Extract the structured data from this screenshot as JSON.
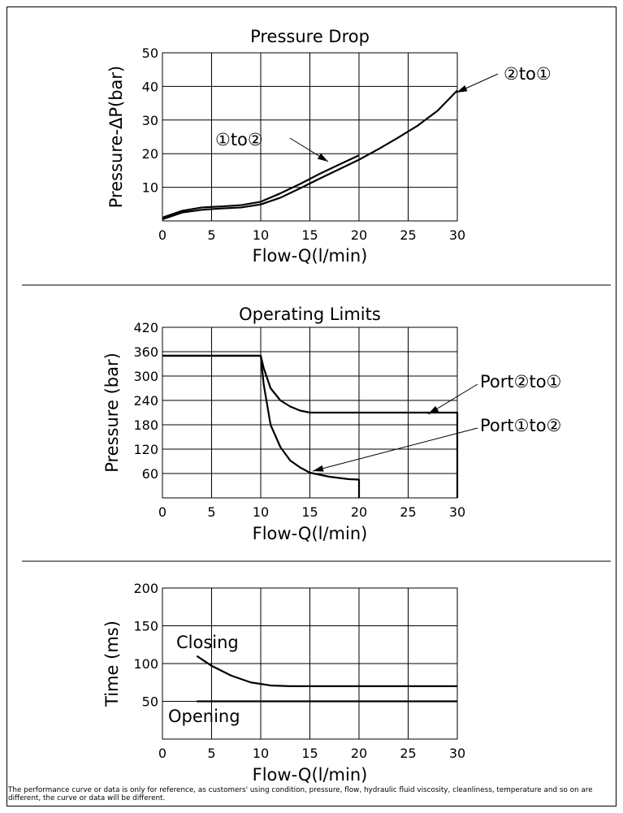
{
  "chart_data": [
    {
      "type": "line",
      "title": "Pressure Drop",
      "xlabel": "Flow-Q(l/min)",
      "ylabel": "Pressure-ΔP(bar)",
      "xlim": [
        0,
        30
      ],
      "ylim": [
        0,
        50
      ],
      "x_ticks": [
        "0",
        "5",
        "10",
        "15",
        "20",
        "25",
        "30"
      ],
      "y_ticks": [
        "10",
        "20",
        "30",
        "40",
        "50"
      ],
      "grid": true,
      "series": [
        {
          "name": "①to②",
          "x": [
            0,
            2,
            4,
            6,
            8,
            10,
            12,
            14,
            16,
            18,
            20
          ],
          "y": [
            1,
            3,
            4,
            4.3,
            4.7,
            5.7,
            8.2,
            11.0,
            14.0,
            16.8,
            19.5
          ]
        },
        {
          "name": "②to①",
          "x": [
            0,
            2,
            4,
            6,
            8,
            10,
            12,
            14,
            16,
            18,
            20,
            22,
            24,
            26,
            28,
            30
          ],
          "y": [
            0.5,
            2.5,
            3.3,
            3.7,
            4.0,
            4.9,
            6.9,
            9.7,
            12.6,
            15.4,
            18.2,
            21.4,
            24.8,
            28.4,
            32.8,
            38.8
          ]
        }
      ],
      "annotations": [
        "①to②",
        "②to①"
      ]
    },
    {
      "type": "line",
      "title": "Operating Limits",
      "xlabel": "Flow-Q(l/min)",
      "ylabel": "Pressure (bar)",
      "xlim": [
        0,
        30
      ],
      "ylim": [
        0,
        420
      ],
      "x_ticks": [
        "0",
        "5",
        "10",
        "15",
        "20",
        "25",
        "30"
      ],
      "y_ticks": [
        "60",
        "120",
        "180",
        "240",
        "300",
        "360",
        "420"
      ],
      "grid": true,
      "series": [
        {
          "name": "Port②to①",
          "x": [
            0,
            10,
            10.3,
            11,
            12,
            13,
            14,
            15,
            18,
            20,
            25,
            30,
            30
          ],
          "y": [
            350,
            350,
            320,
            270,
            240,
            225,
            215,
            210,
            210,
            210,
            210,
            210,
            0
          ]
        },
        {
          "name": "Port①to②",
          "x": [
            0,
            10,
            10.3,
            11,
            12,
            13,
            14,
            15,
            17,
            19,
            20,
            20
          ],
          "y": [
            350,
            350,
            280,
            180,
            125,
            92,
            75,
            62,
            52,
            46,
            45,
            0
          ]
        }
      ],
      "annotations": [
        "Port②to①",
        "Port①to②"
      ]
    },
    {
      "type": "line",
      "title": "",
      "xlabel": "Flow-Q(l/min)",
      "ylabel": "Time (ms)",
      "xlim": [
        0,
        30
      ],
      "ylim": [
        0,
        200
      ],
      "x_ticks": [
        "0",
        "5",
        "10",
        "15",
        "20",
        "25",
        "30"
      ],
      "y_ticks": [
        "50",
        "100",
        "150",
        "200"
      ],
      "grid": true,
      "series": [
        {
          "name": "Closing",
          "x": [
            3.5,
            5,
            7,
            9,
            11,
            13,
            20,
            30
          ],
          "y": [
            110,
            97,
            84,
            75,
            71,
            70,
            70,
            70
          ]
        },
        {
          "name": "Opening",
          "x": [
            3.5,
            30
          ],
          "y": [
            50,
            50
          ]
        }
      ],
      "annotations": [
        "Closing",
        "Opening"
      ]
    }
  ],
  "footer": {
    "disclaimer": "The performance curve or data is only for reference, as customers' using condition, pressure, flow, hydraulic fluid viscosity, cleanliness, temperature and so on are different, the curve or data will be different."
  }
}
